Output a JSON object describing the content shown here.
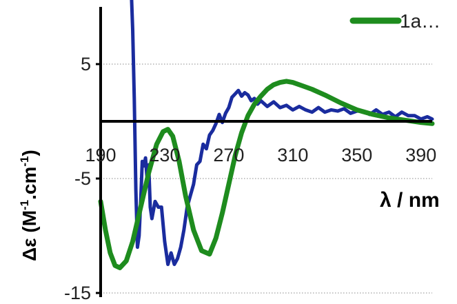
{
  "chart_data": {
    "type": "line",
    "xlabel": "λ / nm",
    "ylabel": "Δε (M-1.cm-1)",
    "ylabel_parts": {
      "main": "Δε (M",
      "sup1": "-1",
      "mid": ".cm",
      "sup2": "-1",
      "end": ")"
    },
    "x_ticks": [
      190,
      230,
      270,
      310,
      350,
      390
    ],
    "y_ticks": [
      5,
      -5,
      -15
    ],
    "xlim": [
      190,
      397
    ],
    "ylim": [
      -15,
      10
    ],
    "grid": "horizontal dotted",
    "legend_placement": "top-right",
    "series": [
      {
        "name": "1a…",
        "color": "#1e8c1e",
        "x": [
          190,
          193,
          196,
          199,
          202,
          206,
          210,
          215,
          220,
          225,
          229,
          232,
          235,
          239,
          243,
          248,
          253,
          258,
          262,
          266,
          270,
          274,
          278,
          282,
          286,
          290,
          294,
          298,
          302,
          306,
          310,
          316,
          322,
          330,
          340,
          350,
          360,
          370,
          380,
          390,
          397
        ],
        "y": [
          -7,
          -9.5,
          -11.5,
          -12.6,
          -12.8,
          -12.2,
          -10.5,
          -7.5,
          -4.5,
          -2,
          -0.9,
          -0.7,
          -1.3,
          -3.5,
          -6.5,
          -9.5,
          -11.3,
          -11.6,
          -10.2,
          -8,
          -5.5,
          -3,
          -1,
          0.5,
          1.5,
          2.2,
          2.8,
          3.2,
          3.4,
          3.5,
          3.4,
          3.1,
          2.8,
          2.3,
          1.6,
          1.0,
          0.6,
          0.3,
          0.1,
          -0.1,
          -0.2
        ]
      },
      {
        "name": "",
        "color": "#1a2c9e",
        "x": [
          209,
          210,
          211,
          212,
          213,
          214,
          215,
          216,
          217,
          218,
          219,
          220,
          221,
          222,
          224,
          226,
          228,
          230,
          232,
          234,
          236,
          238,
          240,
          242,
          244,
          246,
          248,
          250,
          252,
          254,
          256,
          258,
          260,
          262,
          264,
          266,
          268,
          270,
          272,
          274,
          276,
          278,
          280,
          282,
          284,
          286,
          288,
          290,
          294,
          298,
          302,
          306,
          310,
          314,
          318,
          322,
          326,
          330,
          334,
          338,
          342,
          346,
          350,
          354,
          358,
          362,
          366,
          370,
          374,
          378,
          382,
          386,
          390,
          394,
          397
        ],
        "y": [
          12,
          8,
          2,
          -6,
          -11,
          -10,
          -7,
          -3.5,
          -3.9,
          -3.2,
          -5,
          -3.8,
          -7.5,
          -8.5,
          -7,
          -7.5,
          -7.5,
          -10.5,
          -12.5,
          -11.5,
          -12.5,
          -12,
          -11,
          -9.5,
          -7.5,
          -6.5,
          -5.5,
          -3.8,
          -3.5,
          -2,
          -2.4,
          -1.2,
          -0.8,
          -0.2,
          0.6,
          -0.1,
          0.7,
          1.2,
          2.1,
          2.4,
          2.7,
          2.2,
          2.5,
          2.3,
          1.8,
          2.0,
          1.5,
          1.8,
          1.3,
          1.7,
          1.2,
          1.4,
          1.0,
          1.3,
          1.0,
          0.8,
          1.2,
          0.8,
          1.0,
          0.9,
          1.1,
          0.7,
          0.9,
          0.9,
          0.6,
          1.0,
          0.6,
          0.8,
          0.4,
          0.8,
          0.5,
          0.5,
          0.2,
          0.4,
          0.2
        ]
      }
    ]
  }
}
